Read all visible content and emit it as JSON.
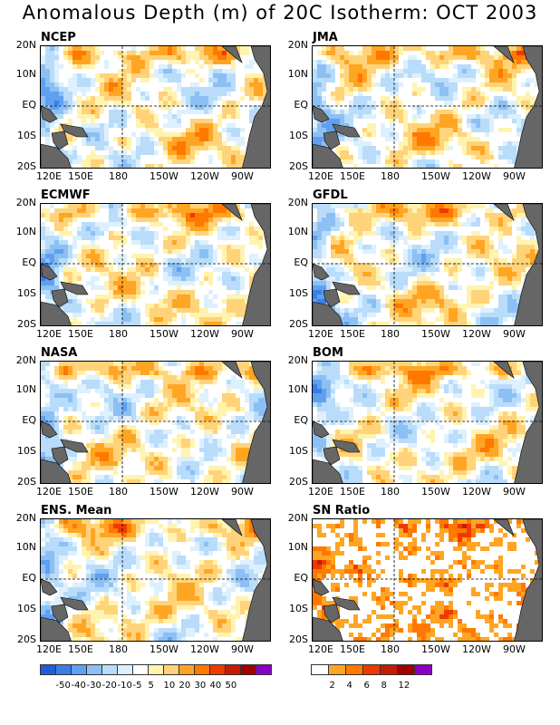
{
  "title": "Anomalous Depth (m) of 20C Isotherm: OCT 2003",
  "panels": [
    {
      "name": "NCEP",
      "variant": "anom"
    },
    {
      "name": "JMA",
      "variant": "anom"
    },
    {
      "name": "ECMWF",
      "variant": "anom"
    },
    {
      "name": "GFDL",
      "variant": "anom"
    },
    {
      "name": "NASA",
      "variant": "anom"
    },
    {
      "name": "BOM",
      "variant": "anom"
    },
    {
      "name": "ENS. Mean",
      "variant": "anom"
    },
    {
      "name": "SN Ratio",
      "variant": "sn"
    }
  ],
  "axes": {
    "y_ticks": [
      "20N",
      "10N",
      "EQ",
      "10S",
      "20S"
    ],
    "x_ticks": [
      "120E",
      "150E",
      "180",
      "150W",
      "120W",
      "90W"
    ]
  },
  "colorbars": {
    "anomaly": {
      "colors": [
        "#1f5fd6",
        "#3a7fe8",
        "#5fa0f0",
        "#8cc0f5",
        "#b8dcfa",
        "#ddf0fd",
        "#ffffff",
        "#fff3b0",
        "#ffd37a",
        "#ffa524",
        "#ff7800",
        "#ee3a00",
        "#c81a00",
        "#a00000",
        "#8a00c8"
      ],
      "labels": [
        "-50",
        "-40",
        "-30",
        "-20",
        "-10",
        "-5",
        "5",
        "10",
        "20",
        "30",
        "40",
        "50"
      ]
    },
    "sn": {
      "colors": [
        "#ffffff",
        "#ffa524",
        "#ff7800",
        "#ee3a00",
        "#c81a00",
        "#a00000",
        "#8a00c8"
      ],
      "labels": [
        "2",
        "4",
        "6",
        "8",
        "12"
      ]
    }
  },
  "chart_data": {
    "type": "heatmap",
    "title": "Anomalous Depth (m) of 20C Isotherm: OCT 2003",
    "xlabel": "",
    "ylabel": "",
    "x_range": [
      "120E",
      "70W"
    ],
    "y_range": [
      "20S",
      "20N"
    ],
    "grid": "dashed lines at EQ and 180",
    "panels": [
      "NCEP",
      "JMA",
      "ECMWF",
      "GFDL",
      "NASA",
      "BOM",
      "ENS. Mean",
      "SN Ratio"
    ],
    "anomaly_levels": [
      -50,
      -40,
      -30,
      -20,
      -10,
      -5,
      5,
      10,
      20,
      30,
      40,
      50
    ],
    "sn_levels": [
      2,
      4,
      6,
      8,
      12
    ]
  }
}
